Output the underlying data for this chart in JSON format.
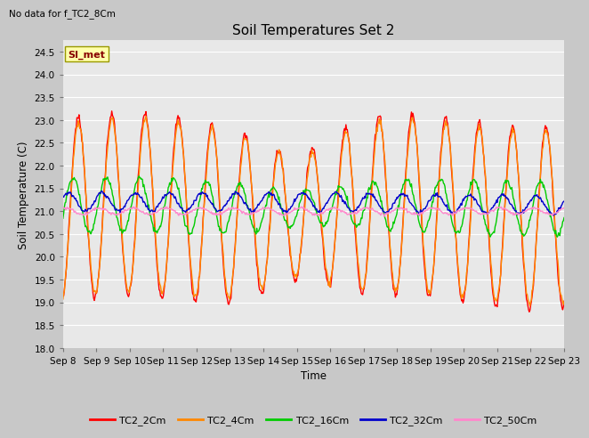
{
  "title": "Soil Temperatures Set 2",
  "no_data_text": "No data for f_TC2_8Cm",
  "annotation_text": "SI_met",
  "xlabel": "Time",
  "ylabel": "Soil Temperature (C)",
  "ylim": [
    18.0,
    24.75
  ],
  "yticks": [
    18.0,
    18.5,
    19.0,
    19.5,
    20.0,
    20.5,
    21.0,
    21.5,
    22.0,
    22.5,
    23.0,
    23.5,
    24.0,
    24.5
  ],
  "xtick_labels": [
    "Sep 8",
    "Sep 9",
    "Sep 10",
    "Sep 11",
    "Sep 12",
    "Sep 13",
    "Sep 14",
    "Sep 15",
    "Sep 16",
    "Sep 17",
    "Sep 18",
    "Sep 19",
    "Sep 20",
    "Sep 21",
    "Sep 22",
    "Sep 23"
  ],
  "fig_bg_color": "#c8c8c8",
  "plot_bg_color": "#e8e8e8",
  "grid_color": "#ffffff",
  "line_colors": {
    "TC2_2Cm": "#ff0000",
    "TC2_4Cm": "#ff8800",
    "TC2_16Cm": "#00cc00",
    "TC2_32Cm": "#0000cc",
    "TC2_50Cm": "#ff88cc"
  },
  "legend_labels": [
    "TC2_2Cm",
    "TC2_4Cm",
    "TC2_16Cm",
    "TC2_32Cm",
    "TC2_50Cm"
  ],
  "n_points": 720,
  "days": 15
}
